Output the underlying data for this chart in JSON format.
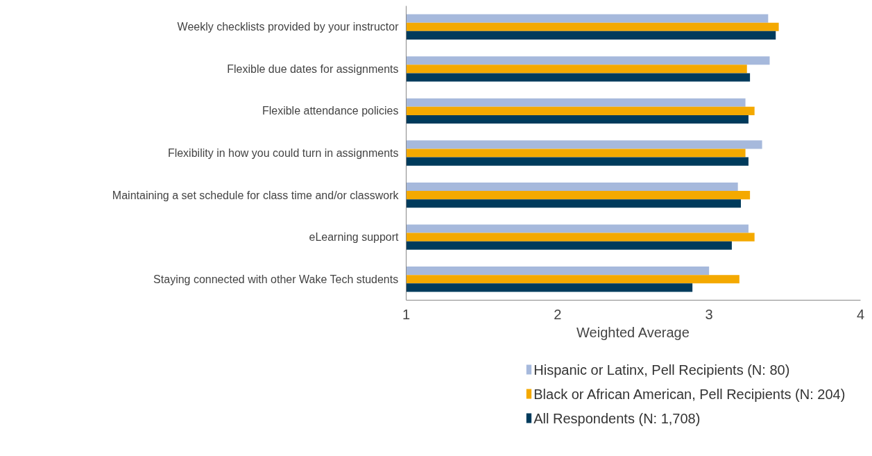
{
  "chart_data": {
    "type": "bar",
    "orientation": "horizontal",
    "categories": [
      "Weekly checklists provided by your instructor",
      "Flexible due dates for assignments",
      "Flexible attendance policies",
      "Flexibility in how you could turn in assignments",
      "Maintaining a set schedule for class time and/or classwork",
      "eLearning support",
      "Staying connected with other Wake Tech students"
    ],
    "series": [
      {
        "name": "Hispanic or Latinx, Pell Recipients (N: 80)",
        "color": "#a6b9dc",
        "values": [
          3.39,
          3.4,
          3.24,
          3.35,
          3.19,
          3.26,
          3.0
        ]
      },
      {
        "name": "Black or African American, Pell Recipients (N: 204)",
        "color": "#f4a900",
        "values": [
          3.46,
          3.25,
          3.3,
          3.24,
          3.27,
          3.3,
          3.2
        ]
      },
      {
        "name": "All Respondents (N: 1,708)",
        "color": "#003b5c",
        "values": [
          3.44,
          3.27,
          3.26,
          3.26,
          3.21,
          3.15,
          2.89
        ]
      }
    ],
    "xlabel": "Weighted Average",
    "xlim": [
      1,
      4
    ],
    "xticks": [
      1,
      2,
      3,
      4
    ],
    "grid": false,
    "legend": "bottom"
  }
}
